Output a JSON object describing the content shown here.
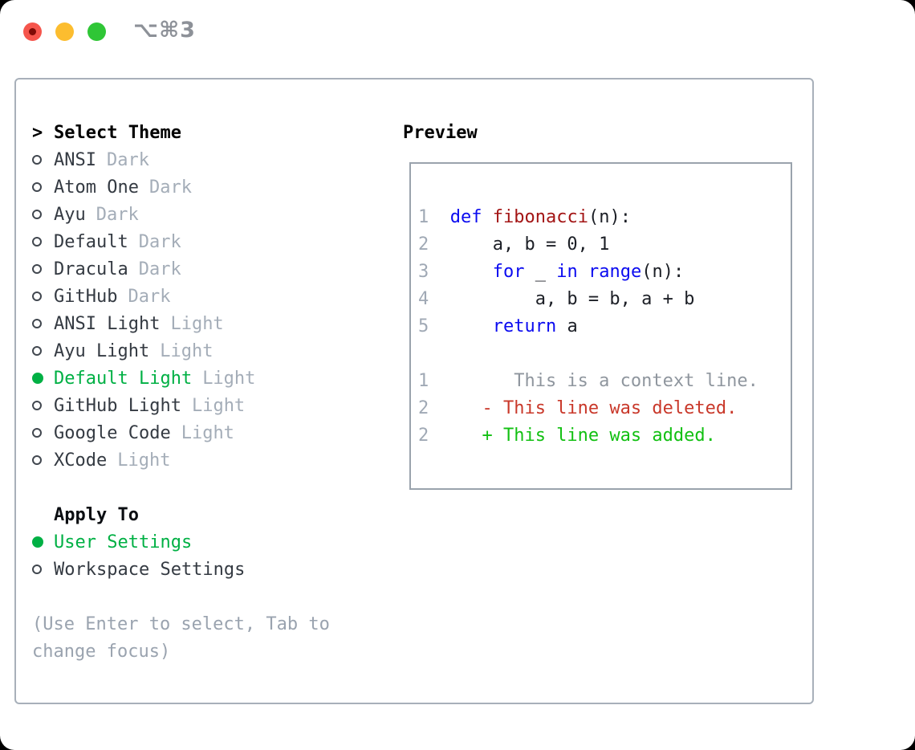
{
  "window": {
    "shortcut_label": "⌥⌘3",
    "traffic_lights": {
      "close_color": "#f5554c",
      "close_dot_color": "#7e0b06",
      "minimize_color": "#fcbd2f",
      "zoom_color": "#2fc636"
    }
  },
  "theme_picker": {
    "header": {
      "marker": ">",
      "label": "Select Theme"
    },
    "items": [
      {
        "name": "ANSI",
        "variant": "Dark",
        "selected": false
      },
      {
        "name": "Atom One",
        "variant": "Dark",
        "selected": false
      },
      {
        "name": "Ayu",
        "variant": "Dark",
        "selected": false
      },
      {
        "name": "Default",
        "variant": "Dark",
        "selected": false
      },
      {
        "name": "Dracula",
        "variant": "Dark",
        "selected": false
      },
      {
        "name": "GitHub",
        "variant": "Dark",
        "selected": false
      },
      {
        "name": "ANSI Light",
        "variant": "Light",
        "selected": false
      },
      {
        "name": "Ayu Light",
        "variant": "Light",
        "selected": false
      },
      {
        "name": "Default Light",
        "variant": "Light",
        "selected": true
      },
      {
        "name": "GitHub Light",
        "variant": "Light",
        "selected": false
      },
      {
        "name": "Google Code",
        "variant": "Light",
        "selected": false
      },
      {
        "name": "XCode",
        "variant": "Light",
        "selected": false
      }
    ],
    "apply_to": {
      "label": "Apply To",
      "options": [
        {
          "label": "User Settings",
          "selected": true
        },
        {
          "label": "Workspace Settings",
          "selected": false
        }
      ]
    },
    "help_lines": [
      "(Use Enter to select, Tab to",
      "change focus)"
    ]
  },
  "preview": {
    "title": "Preview",
    "lines": [
      {
        "num": "1",
        "segments": [
          {
            "t": "def",
            "s": "kw"
          },
          {
            "t": " ",
            "s": "plain"
          },
          {
            "t": "fibonacci",
            "s": "fn"
          },
          {
            "t": "(n):",
            "s": "plain"
          }
        ]
      },
      {
        "num": "2",
        "segments": [
          {
            "t": "    a, b = 0, 1",
            "s": "plain"
          }
        ]
      },
      {
        "num": "3",
        "segments": [
          {
            "t": "    ",
            "s": "plain"
          },
          {
            "t": "for",
            "s": "kw"
          },
          {
            "t": " _ ",
            "s": "plain"
          },
          {
            "t": "in",
            "s": "kw"
          },
          {
            "t": " ",
            "s": "plain"
          },
          {
            "t": "range",
            "s": "kw"
          },
          {
            "t": "(n):",
            "s": "plain"
          }
        ]
      },
      {
        "num": "4",
        "segments": [
          {
            "t": "        a, b = b, a + b",
            "s": "plain"
          }
        ]
      },
      {
        "num": "5",
        "segments": [
          {
            "t": "    ",
            "s": "plain"
          },
          {
            "t": "return",
            "s": "kw"
          },
          {
            "t": " a",
            "s": "plain"
          }
        ]
      },
      {
        "num": "",
        "segments": []
      },
      {
        "num": "1",
        "segments": [
          {
            "t": "      This is a context line.",
            "s": "ctx"
          }
        ]
      },
      {
        "num": "2",
        "segments": [
          {
            "t": "   - This line was deleted.",
            "s": "del"
          }
        ]
      },
      {
        "num": "2",
        "segments": [
          {
            "t": "   + This line was added.",
            "s": "add"
          }
        ]
      }
    ]
  },
  "colors": {
    "keyword_blue": "#0b0bf0",
    "function_red": "#a31515",
    "code_plain": "#1c1f26",
    "context_gray": "#8f969e",
    "deleted_red": "#c9382a",
    "added_green": "#12c012",
    "selected_green": "#00b044",
    "muted_gray": "#a4adb8",
    "line_number_gray": "#a0a9b5",
    "item_text": "#343a42",
    "panel_border": "#a8b0ba",
    "preview_border": "#9aa3ad"
  }
}
